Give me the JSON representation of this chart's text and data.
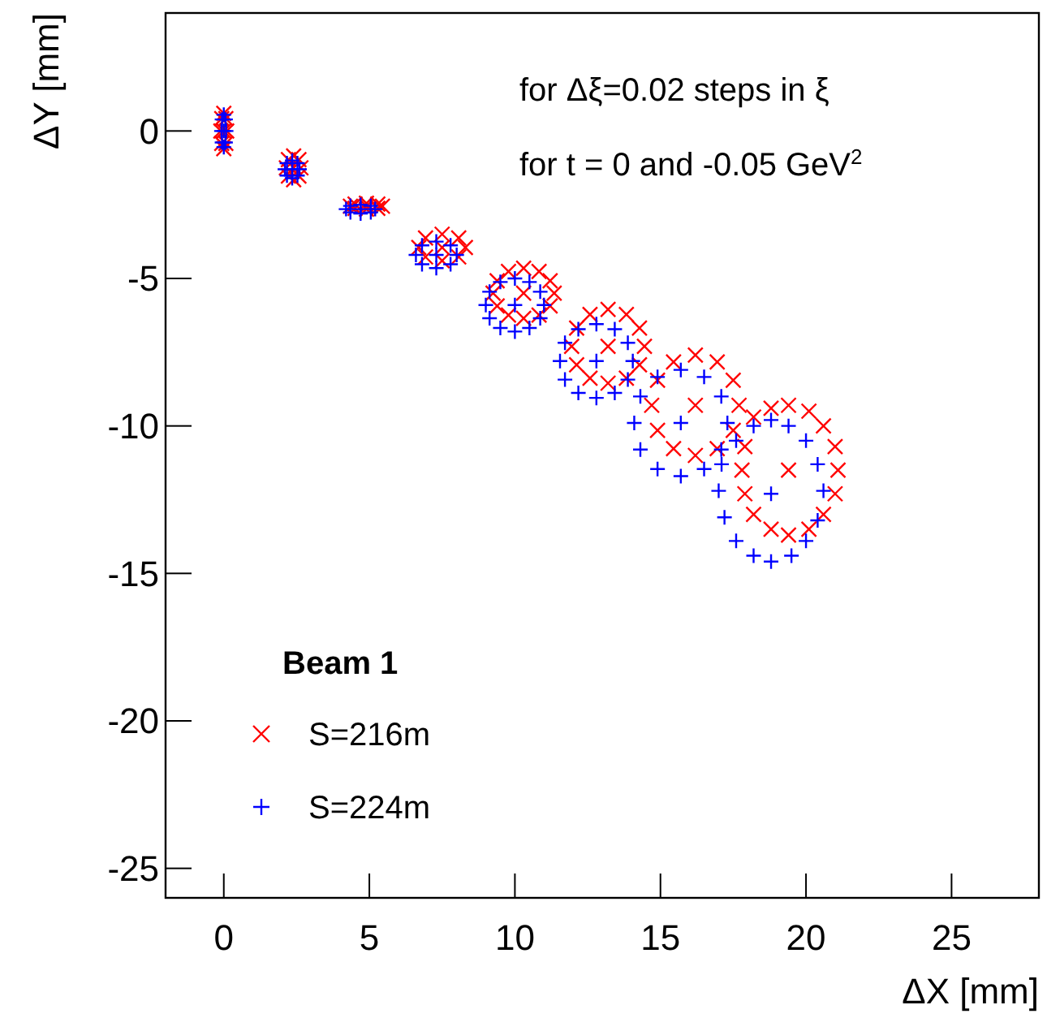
{
  "chart_data": {
    "type": "scatter",
    "xlabel": "ΔX [mm]",
    "ylabel": "ΔY [mm]",
    "legend_title": "Beam 1",
    "legend": "bottom left",
    "grid": false,
    "annotations": [
      "for Δξ=0.02 steps in ξ",
      "for t = 0 and -0.05 GeV$^{2}$"
    ],
    "xlim": [
      -2,
      28
    ],
    "ylim": [
      -26,
      4
    ],
    "xticks": [
      0,
      5,
      10,
      15,
      20,
      25
    ],
    "yticks": [
      0,
      -5,
      -10,
      -15,
      -20,
      -25
    ],
    "series": [
      {
        "name": "S=216m",
        "color": "#ff0000",
        "marker": "x",
        "x": [
          0,
          0.1,
          0.07,
          0,
          -0.07,
          -0.1,
          -0.07,
          0,
          0.07,
          2.4,
          2.65,
          2.58,
          2.4,
          2.22,
          2.15,
          2.22,
          2.4,
          2.58,
          4.9,
          5.45,
          5.29,
          4.9,
          4.51,
          4.35,
          4.51,
          4.9,
          5.29,
          7.5,
          8.3,
          8.07,
          7.5,
          6.93,
          6.7,
          6.93,
          7.5,
          8.07,
          10.3,
          11.35,
          11.21,
          10.83,
          10.3,
          9.78,
          9.39,
          9.25,
          9.39,
          9.78,
          10.3,
          10.83,
          11.21,
          13.2,
          14.45,
          14.28,
          13.83,
          13.2,
          12.58,
          12.12,
          11.95,
          12.12,
          12.58,
          13.2,
          13.83,
          14.28,
          16.2,
          17.7,
          17.5,
          16.95,
          16.2,
          15.45,
          14.9,
          14.7,
          14.9,
          15.45,
          16.2,
          16.95,
          17.5,
          19.4,
          18.2,
          18.8,
          19.4,
          20.1,
          20.6,
          21.0,
          21.1,
          21.0,
          20.6,
          20.1,
          19.4,
          18.8,
          18.2,
          17.9,
          17.8,
          17.9
        ],
        "values": [
          0,
          0,
          0.42,
          0.6,
          0.42,
          0,
          -0.42,
          -0.6,
          -0.42,
          -1.25,
          -1.25,
          -0.97,
          -0.85,
          -0.97,
          -1.25,
          -1.53,
          -1.65,
          -1.53,
          -2.55,
          -2.55,
          -2.48,
          -2.45,
          -2.48,
          -2.55,
          -2.62,
          -2.65,
          -2.62,
          -3.95,
          -3.95,
          -3.63,
          -3.5,
          -3.63,
          -3.95,
          -4.27,
          -4.4,
          -4.27,
          -5.5,
          -5.5,
          -5.08,
          -4.76,
          -4.65,
          -4.76,
          -5.08,
          -5.5,
          -5.93,
          -6.24,
          -6.35,
          -6.24,
          -5.93,
          -7.3,
          -7.3,
          -6.68,
          -6.22,
          -6.05,
          -6.22,
          -6.68,
          -7.3,
          -7.93,
          -8.38,
          -8.55,
          -8.38,
          -7.93,
          -9.3,
          -9.3,
          -8.45,
          -7.83,
          -7.6,
          -7.83,
          -8.45,
          -9.3,
          -10.15,
          -10.77,
          -11.0,
          -10.77,
          -10.15,
          -11.5,
          -9.7,
          -9.4,
          -9.3,
          -9.5,
          -10.0,
          -10.7,
          -11.5,
          -12.3,
          -13.0,
          -13.5,
          -13.7,
          -13.5,
          -13.0,
          -12.3,
          -11.5,
          -10.7
        ]
      },
      {
        "name": "S=224m",
        "color": "#0000ff",
        "marker": "cross",
        "x": [
          0,
          0.08,
          0.06,
          0,
          -0.06,
          -0.08,
          -0.06,
          0,
          0.06,
          2.35,
          2.6,
          2.53,
          2.35,
          2.17,
          2.1,
          2.17,
          2.35,
          2.53,
          4.7,
          5.2,
          5.05,
          4.7,
          4.35,
          4.2,
          4.35,
          4.7,
          5.05,
          7.3,
          8.0,
          7.79,
          7.3,
          6.81,
          6.6,
          6.81,
          7.3,
          7.79,
          10.0,
          11.0,
          10.87,
          10.5,
          10.0,
          9.5,
          9.13,
          9.0,
          9.13,
          9.5,
          10.0,
          10.5,
          10.87,
          12.8,
          14.05,
          13.88,
          13.43,
          12.8,
          12.18,
          11.72,
          11.55,
          11.72,
          12.18,
          12.8,
          13.43,
          13.88,
          15.7,
          17.3,
          17.09,
          16.5,
          15.7,
          14.9,
          14.31,
          14.1,
          14.31,
          14.9,
          15.7,
          16.5,
          17.09,
          18.8,
          18.2,
          18.8,
          19.4,
          20.0,
          20.4,
          20.6,
          20.4,
          20.0,
          19.5,
          18.8,
          18.2,
          17.6,
          17.2,
          17.0,
          17.1,
          17.6
        ],
        "values": [
          0,
          0,
          0.39,
          0.55,
          0.39,
          0,
          -0.39,
          -0.55,
          -0.39,
          -1.3,
          -1.3,
          -1.09,
          -1.0,
          -1.09,
          -1.3,
          -1.51,
          -1.6,
          -1.51,
          -2.65,
          -2.65,
          -2.54,
          -2.5,
          -2.54,
          -2.65,
          -2.76,
          -2.8,
          -2.76,
          -4.2,
          -4.2,
          -3.88,
          -3.75,
          -3.88,
          -4.2,
          -4.52,
          -4.65,
          -4.52,
          -5.9,
          -5.9,
          -5.45,
          -5.12,
          -5.0,
          -5.12,
          -5.45,
          -5.9,
          -6.35,
          -6.68,
          -6.8,
          -6.68,
          -6.35,
          -7.8,
          -7.8,
          -7.18,
          -6.72,
          -6.55,
          -6.72,
          -7.18,
          -7.8,
          -8.43,
          -8.88,
          -9.05,
          -8.88,
          -8.43,
          -9.9,
          -9.9,
          -9.0,
          -8.34,
          -8.1,
          -8.34,
          -9.0,
          -9.9,
          -10.8,
          -11.46,
          -11.7,
          -11.46,
          -10.8,
          -12.3,
          -10.0,
          -9.8,
          -10.0,
          -10.5,
          -11.3,
          -12.2,
          -13.2,
          -13.9,
          -14.4,
          -14.6,
          -14.4,
          -13.9,
          -13.1,
          -12.2,
          -11.3,
          -10.5
        ]
      }
    ]
  }
}
